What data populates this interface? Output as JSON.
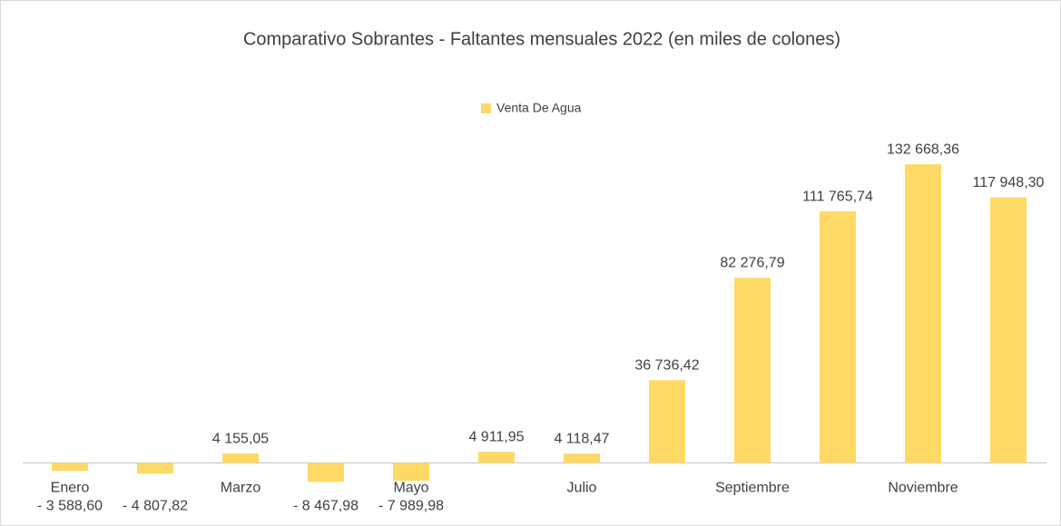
{
  "chart_data": {
    "type": "bar",
    "title": "Comparativo Sobrantes - Faltantes mensuales 2022 (en miles de colones)",
    "categories": [
      "Enero",
      null,
      "Marzo",
      null,
      "Mayo",
      null,
      "Julio",
      null,
      "Septiembre",
      null,
      "Noviembre",
      null
    ],
    "series": [
      {
        "name": "Venta De Agua",
        "color": "#ffd966",
        "values": [
          -3588.6,
          -4807.82,
          4155.05,
          -8467.98,
          -7989.98,
          4911.95,
          4118.47,
          36736.42,
          82276.79,
          111765.74,
          132668.36,
          117948.3
        ],
        "value_labels": [
          "- 3 588,60",
          "- 4 807,82",
          "4 155,05",
          "- 8 467,98",
          "- 7 989,98",
          "4 911,95",
          "4 118,47",
          "36 736,42",
          "82 276,79",
          "111 765,74",
          "132 668,36",
          "117 948,30"
        ]
      }
    ],
    "ylim": [
      -20000,
      140000
    ],
    "legend": "top"
  }
}
